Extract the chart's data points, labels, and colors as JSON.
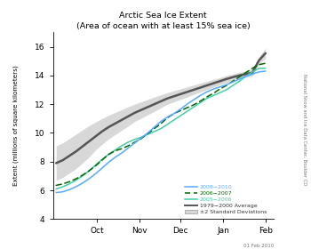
{
  "title": "Arctic Sea Ice Extent",
  "subtitle": "(Area of ocean with at least 15% sea ice)",
  "ylabel": "Extent (millions of square kilometers)",
  "watermark": "National Snow and Ice Data Center, Boulder CO",
  "date_label": "01 Feb 2010",
  "xtick_labels": [
    "Oct",
    "Nov",
    "Dec",
    "Jan",
    "Feb"
  ],
  "ylim": [
    4,
    17
  ],
  "yticks": [
    4,
    6,
    8,
    10,
    12,
    14,
    16
  ],
  "avg_color": "#555555",
  "shade_color": "#d8d8d8",
  "line_2009_color": "#55aaff",
  "line_2006_color": "#006600",
  "line_2005_color": "#44ccaa",
  "avg_x": [
    0,
    4,
    8,
    12,
    16,
    20,
    24,
    28,
    32,
    36,
    40,
    44,
    48,
    52,
    56,
    60,
    64,
    68,
    72,
    76,
    80,
    84,
    88,
    92,
    96,
    100,
    104,
    108,
    112,
    116,
    120,
    124,
    128
  ],
  "avg_y": [
    7.9,
    8.1,
    8.4,
    8.7,
    9.05,
    9.4,
    9.75,
    10.1,
    10.4,
    10.65,
    10.9,
    11.15,
    11.4,
    11.6,
    11.8,
    12.0,
    12.2,
    12.4,
    12.55,
    12.7,
    12.85,
    13.0,
    13.15,
    13.3,
    13.45,
    13.6,
    13.75,
    13.88,
    14.0,
    14.1,
    14.2,
    15.05,
    15.55
  ],
  "std2_upper": [
    9.1,
    9.3,
    9.6,
    9.9,
    10.2,
    10.5,
    10.75,
    11.0,
    11.22,
    11.42,
    11.62,
    11.82,
    12.0,
    12.17,
    12.33,
    12.5,
    12.65,
    12.8,
    12.94,
    13.07,
    13.2,
    13.33,
    13.46,
    13.59,
    13.72,
    13.85,
    14.0,
    14.1,
    14.22,
    14.32,
    14.45,
    15.3,
    15.9
  ],
  "std2_lower": [
    6.7,
    6.9,
    7.2,
    7.5,
    7.9,
    8.3,
    8.8,
    9.2,
    9.58,
    9.88,
    10.18,
    10.48,
    10.8,
    11.03,
    11.27,
    11.5,
    11.75,
    12.0,
    12.16,
    12.33,
    12.5,
    12.67,
    12.84,
    13.01,
    13.18,
    13.35,
    13.5,
    13.66,
    13.78,
    13.88,
    13.95,
    14.8,
    15.2
  ],
  "x_2009": [
    0,
    4,
    8,
    12,
    16,
    20,
    24,
    28,
    32,
    36,
    40,
    44,
    48,
    52,
    56,
    60,
    64,
    68,
    72,
    76,
    80,
    84,
    88,
    92,
    96,
    100,
    104,
    108,
    112,
    116,
    120,
    124,
    128
  ],
  "y_2009": [
    5.85,
    5.9,
    6.05,
    6.25,
    6.5,
    6.8,
    7.15,
    7.55,
    7.95,
    8.3,
    8.6,
    8.95,
    9.3,
    9.65,
    10.0,
    10.4,
    10.8,
    11.1,
    11.35,
    11.65,
    12.0,
    12.3,
    12.6,
    12.85,
    13.05,
    13.2,
    13.35,
    13.55,
    13.75,
    13.95,
    14.1,
    14.25,
    14.3
  ],
  "x_2006": [
    0,
    4,
    8,
    12,
    16,
    20,
    24,
    28,
    32,
    36,
    40,
    44,
    48,
    52,
    56,
    60,
    64,
    68,
    72,
    76,
    80,
    84,
    88,
    92,
    96,
    100,
    104,
    108,
    112,
    116,
    120,
    124,
    128
  ],
  "y_2006": [
    6.35,
    6.45,
    6.6,
    6.8,
    7.05,
    7.35,
    7.7,
    8.1,
    8.5,
    8.75,
    8.9,
    9.1,
    9.35,
    9.6,
    9.95,
    10.3,
    10.65,
    11.05,
    11.35,
    11.55,
    11.75,
    11.95,
    12.2,
    12.5,
    12.75,
    13.05,
    13.3,
    13.6,
    13.9,
    14.2,
    14.5,
    14.75,
    14.85
  ],
  "x_2005": [
    0,
    4,
    8,
    12,
    16,
    20,
    24,
    28,
    32,
    36,
    40,
    44,
    48,
    52,
    56,
    60,
    64,
    68,
    72,
    76,
    80,
    84,
    88,
    92,
    96,
    100,
    104,
    108,
    112,
    116,
    120,
    124,
    128
  ],
  "y_2005": [
    6.1,
    6.25,
    6.45,
    6.7,
    7.0,
    7.35,
    7.75,
    8.15,
    8.5,
    8.8,
    9.1,
    9.35,
    9.55,
    9.7,
    9.9,
    10.1,
    10.3,
    10.6,
    10.9,
    11.2,
    11.5,
    11.8,
    12.1,
    12.4,
    12.6,
    12.8,
    13.0,
    13.3,
    13.6,
    13.95,
    14.25,
    14.5,
    14.5
  ]
}
